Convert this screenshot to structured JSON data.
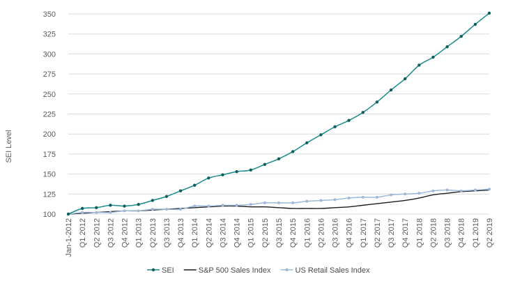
{
  "chart_data": {
    "type": "line",
    "title": "",
    "xlabel": "",
    "ylabel": "SEI Level",
    "ylim": [
      100,
      350
    ],
    "yticks": [
      100,
      125,
      150,
      175,
      200,
      225,
      250,
      275,
      300,
      325,
      350
    ],
    "grid": true,
    "legend_position": "bottom",
    "categories": [
      "Jan-1-2012",
      "Q1 2012",
      "Q2 2012",
      "Q3 2012",
      "Q4 2012",
      "Q1 2013",
      "Q2 2013",
      "Q3 2013",
      "Q4 2013",
      "Q1 2014",
      "Q2 2014",
      "Q3 2014",
      "Q4 2014",
      "Q1 2015",
      "Q2 2015",
      "Q3 2015",
      "Q4 2015",
      "Q1 2016",
      "Q2 2016",
      "Q3 2016",
      "Q4 2016",
      "Q1 2017",
      "Q2 2017",
      "Q3 2017",
      "Q4 2017",
      "Q1 2018",
      "Q2 2018",
      "Q3 2018",
      "Q4 2018",
      "Q1 2019",
      "Q2 2019"
    ],
    "series": [
      {
        "name": "SEI",
        "color": "#1a8a8a",
        "marker": "dot",
        "values": [
          100,
          107,
          108,
          111,
          110,
          112,
          117,
          122,
          129,
          136,
          145,
          149,
          153,
          155,
          162,
          169,
          178,
          189,
          199,
          209,
          217,
          227,
          240,
          255,
          269,
          286,
          296,
          309,
          322,
          337,
          351
        ]
      },
      {
        "name": "S&P 500 Sales Index",
        "color": "#1c1c1c",
        "marker": "none",
        "values": [
          100,
          101,
          102,
          103,
          104,
          104,
          105,
          106,
          107,
          108,
          109,
          110,
          110,
          109,
          109,
          108,
          107,
          107,
          107,
          108,
          109,
          111,
          113,
          115,
          117,
          120,
          124,
          126,
          128,
          129,
          130
        ]
      },
      {
        "name": "US Retail Sales Index",
        "color": "#9db8d6",
        "marker": "dot",
        "values": [
          100,
          102,
          102,
          102,
          104,
          104,
          106,
          106,
          106,
          110,
          110,
          111,
          111,
          112,
          114,
          114,
          114,
          116,
          117,
          118,
          120,
          121,
          121,
          124,
          125,
          126,
          129,
          130,
          129,
          130,
          131
        ]
      }
    ]
  }
}
